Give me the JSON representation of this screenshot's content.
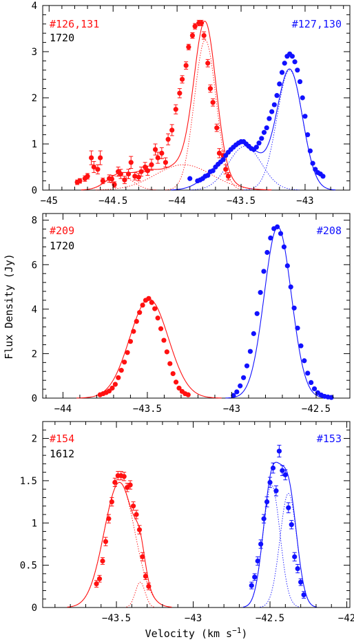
{
  "ylabel": "Flux Density (Jy)",
  "xlabel": "Velocity (km s",
  "xlabel_sup": "−1",
  "xlabel_close": ")",
  "colors": {
    "red": "#ff1111",
    "blue": "#1111ff",
    "axis": "#000000"
  },
  "chart_data": [
    {
      "type": "scatter",
      "xlim": [
        -45.05,
        -42.65
      ],
      "ylim": [
        0,
        4
      ],
      "xticks_major": [
        -45,
        -44.5,
        -44,
        -43.5,
        -43
      ],
      "xticklabels": [
        "−45",
        "−44.5",
        "−44",
        "−43.5",
        "−43"
      ],
      "yticks_major": [
        0,
        1,
        2,
        3,
        4
      ],
      "yticklabels": [
        "0",
        "1",
        "2",
        "3",
        "4"
      ],
      "labels": {
        "left_top": "#126,131",
        "left_bottom": "1720",
        "right_top": "#127,130"
      },
      "series": [
        {
          "color": "red",
          "errors": true,
          "x": [
            -44.78,
            -44.76,
            -44.72,
            -44.7,
            -44.67,
            -44.65,
            -44.62,
            -44.6,
            -44.58,
            -44.53,
            -44.51,
            -44.49,
            -44.46,
            -44.44,
            -44.41,
            -44.38,
            -44.36,
            -44.33,
            -44.3,
            -44.28,
            -44.25,
            -44.23,
            -44.2,
            -44.17,
            -44.15,
            -44.12,
            -44.09,
            -44.07,
            -44.04,
            -44.01,
            -43.98,
            -43.96,
            -43.93,
            -43.91,
            -43.88,
            -43.86,
            -43.83,
            -43.81,
            -43.79,
            -43.76,
            -43.74,
            -43.72,
            -43.69,
            -43.67,
            -43.64,
            -43.62,
            -43.6
          ],
          "y": [
            0.17,
            0.2,
            0.25,
            0.3,
            0.7,
            0.5,
            0.45,
            0.7,
            0.2,
            0.25,
            0.24,
            0.12,
            0.4,
            0.35,
            0.22,
            0.35,
            0.6,
            0.3,
            0.28,
            0.4,
            0.5,
            0.42,
            0.55,
            0.88,
            0.7,
            0.8,
            0.6,
            1.1,
            1.3,
            1.75,
            2.1,
            2.4,
            2.7,
            3.1,
            3.35,
            3.55,
            3.62,
            3.62,
            3.35,
            2.75,
            2.2,
            1.9,
            1.35,
            0.8,
            0.75,
            0.45,
            0.3
          ],
          "err": [
            0.05,
            0.05,
            0.06,
            0.06,
            0.15,
            0.12,
            0.1,
            0.15,
            0.06,
            0.08,
            0.08,
            0.06,
            0.1,
            0.1,
            0.08,
            0.1,
            0.13,
            0.08,
            0.08,
            0.1,
            0.1,
            0.1,
            0.12,
            0.12,
            0.12,
            0.12,
            0.1,
            0.12,
            0.12,
            0.1,
            0.1,
            0.08,
            0.08,
            0.06,
            0.06,
            0.06,
            0.06,
            0.06,
            0.08,
            0.08,
            0.08,
            0.08,
            0.08,
            0.1,
            0.1,
            0.1,
            0.08
          ]
        },
        {
          "color": "blue",
          "errors": true,
          "x": [
            -43.9,
            -43.84,
            -43.82,
            -43.8,
            -43.78,
            -43.76,
            -43.74,
            -43.72,
            -43.7,
            -43.68,
            -43.66,
            -43.64,
            -43.62,
            -43.6,
            -43.58,
            -43.56,
            -43.54,
            -43.52,
            -43.5,
            -43.48,
            -43.46,
            -43.44,
            -43.42,
            -43.4,
            -43.38,
            -43.36,
            -43.34,
            -43.32,
            -43.3,
            -43.28,
            -43.26,
            -43.24,
            -43.22,
            -43.2,
            -43.18,
            -43.16,
            -43.14,
            -43.12,
            -43.1,
            -43.08,
            -43.06,
            -43.04,
            -43.02,
            -43.0,
            -42.98,
            -42.96,
            -42.94,
            -42.92,
            -42.9,
            -42.88,
            -42.86
          ],
          "y": [
            0.25,
            0.2,
            0.22,
            0.25,
            0.3,
            0.32,
            0.4,
            0.42,
            0.5,
            0.56,
            0.61,
            0.66,
            0.75,
            0.82,
            0.88,
            0.93,
            0.98,
            1.02,
            1.05,
            1.05,
            1.0,
            0.95,
            0.9,
            0.88,
            0.93,
            1.02,
            1.12,
            1.25,
            1.35,
            1.55,
            1.7,
            1.85,
            2.05,
            2.3,
            2.55,
            2.75,
            2.9,
            2.95,
            2.9,
            2.78,
            2.6,
            2.35,
            2.0,
            1.6,
            1.2,
            0.85,
            0.58,
            0.45,
            0.38,
            0.35,
            0.3
          ]
        }
      ],
      "fits": [
        {
          "color": "red",
          "kind": "total",
          "components": [
            [
              3.25,
              -43.78,
              0.085
            ],
            [
              0.55,
              -43.95,
              0.22
            ],
            [
              0.32,
              -44.45,
              0.1
            ],
            [
              0.18,
              -44.25,
              0.08
            ]
          ]
        },
        {
          "color": "red",
          "kind": "dotted",
          "components": [
            [
              3.25,
              -43.78,
              0.085
            ]
          ]
        },
        {
          "color": "red",
          "kind": "dotted",
          "components": [
            [
              0.55,
              -43.95,
              0.22
            ]
          ]
        },
        {
          "color": "red",
          "kind": "dotted",
          "components": [
            [
              0.32,
              -44.45,
              0.1
            ]
          ]
        },
        {
          "color": "blue",
          "kind": "total",
          "components": [
            [
              2.6,
              -43.12,
              0.1
            ],
            [
              0.95,
              -43.47,
              0.13
            ],
            [
              0.3,
              -43.7,
              0.12
            ]
          ]
        },
        {
          "color": "blue",
          "kind": "dotted",
          "components": [
            [
              2.6,
              -43.12,
              0.1
            ]
          ]
        },
        {
          "color": "blue",
          "kind": "dotted",
          "components": [
            [
              0.95,
              -43.47,
              0.13
            ]
          ]
        }
      ]
    },
    {
      "type": "scatter",
      "xlim": [
        -44.12,
        -42.3
      ],
      "ylim": [
        0,
        8.3
      ],
      "xticks_major": [
        -44,
        -43.5,
        -43,
        -42.5
      ],
      "xticklabels": [
        "−44",
        "−43.5",
        "−43",
        "−42.5"
      ],
      "yticks_major": [
        0,
        2,
        4,
        6,
        8
      ],
      "yticklabels": [
        "0",
        "2",
        "4",
        "6",
        "8"
      ],
      "labels": {
        "left_top": "#209",
        "left_bottom": "1720",
        "right_top": "#208"
      },
      "series": [
        {
          "color": "red",
          "errors": false,
          "x": [
            -43.78,
            -43.762,
            -43.744,
            -43.726,
            -43.708,
            -43.69,
            -43.672,
            -43.654,
            -43.636,
            -43.618,
            -43.6,
            -43.582,
            -43.564,
            -43.546,
            -43.528,
            -43.51,
            -43.492,
            -43.474,
            -43.456,
            -43.438,
            -43.42,
            -43.402,
            -43.384,
            -43.366,
            -43.348,
            -43.33,
            -43.312,
            -43.294,
            -43.276,
            -43.258
          ],
          "y": [
            0.15,
            0.2,
            0.25,
            0.32,
            0.45,
            0.62,
            0.92,
            1.25,
            1.62,
            2.05,
            2.55,
            3.0,
            3.45,
            3.85,
            4.18,
            4.4,
            4.48,
            4.3,
            4.02,
            3.6,
            3.12,
            2.6,
            2.08,
            1.55,
            1.1,
            0.72,
            0.45,
            0.3,
            0.2,
            0.15
          ]
        },
        {
          "color": "blue",
          "errors": false,
          "x": [
            -42.99,
            -42.97,
            -42.95,
            -42.93,
            -42.91,
            -42.89,
            -42.87,
            -42.85,
            -42.83,
            -42.81,
            -42.79,
            -42.77,
            -42.75,
            -42.73,
            -42.71,
            -42.69,
            -42.67,
            -42.65,
            -42.63,
            -42.61,
            -42.59,
            -42.57,
            -42.55,
            -42.53,
            -42.51,
            -42.49,
            -42.47,
            -42.45,
            -42.43,
            -42.41
          ],
          "y": [
            0.12,
            0.28,
            0.55,
            0.92,
            1.45,
            2.1,
            2.9,
            3.8,
            4.75,
            5.7,
            6.55,
            7.2,
            7.62,
            7.7,
            7.4,
            6.8,
            5.95,
            5.0,
            4.05,
            3.15,
            2.35,
            1.68,
            1.12,
            0.7,
            0.42,
            0.24,
            0.14,
            0.08,
            0.05,
            0.03
          ]
        }
      ],
      "fits": [
        {
          "color": "red",
          "kind": "total",
          "components": [
            [
              4.45,
              -43.49,
              0.115
            ]
          ]
        },
        {
          "color": "blue",
          "kind": "total",
          "components": [
            [
              7.7,
              -42.727,
              0.08
            ]
          ]
        }
      ]
    },
    {
      "type": "scatter",
      "xlim": [
        -43.98,
        -41.98
      ],
      "ylim": [
        0,
        2.2
      ],
      "xticks_major": [
        -43.5,
        -43,
        -42.5,
        -42
      ],
      "xticklabels": [
        "−43.5",
        "−43",
        "−42.5",
        "−42"
      ],
      "yticks_major": [
        0,
        0.5,
        1,
        1.5,
        2
      ],
      "yticklabels": [
        "0",
        "0.5",
        "1",
        "1.5",
        "2"
      ],
      "labels": {
        "left_top": "#154",
        "left_bottom": "1612",
        "right_top": "#153"
      },
      "series": [
        {
          "color": "red",
          "errors": true,
          "x": [
            -43.63,
            -43.61,
            -43.59,
            -43.57,
            -43.55,
            -43.53,
            -43.51,
            -43.49,
            -43.47,
            -43.45,
            -43.43,
            -43.41,
            -43.39,
            -43.37,
            -43.35,
            -43.33,
            -43.31,
            -43.29
          ],
          "y": [
            0.28,
            0.34,
            0.55,
            0.78,
            1.05,
            1.25,
            1.48,
            1.56,
            1.56,
            1.55,
            1.42,
            1.45,
            1.2,
            1.1,
            0.92,
            0.6,
            0.37,
            0.25
          ],
          "err": [
            0.04,
            0.04,
            0.04,
            0.05,
            0.05,
            0.05,
            0.05,
            0.05,
            0.05,
            0.05,
            0.05,
            0.05,
            0.05,
            0.05,
            0.05,
            0.05,
            0.04,
            0.04
          ]
        },
        {
          "color": "blue",
          "errors": true,
          "x": [
            -42.62,
            -42.6,
            -42.58,
            -42.56,
            -42.54,
            -42.52,
            -42.5,
            -42.48,
            -42.46,
            -42.44,
            -42.42,
            -42.4,
            -42.38,
            -42.36,
            -42.34,
            -42.32,
            -42.3,
            -42.28
          ],
          "y": [
            0.26,
            0.36,
            0.55,
            0.75,
            1.05,
            1.25,
            1.48,
            1.65,
            1.38,
            1.85,
            1.62,
            1.57,
            1.18,
            0.98,
            0.6,
            0.46,
            0.3,
            0.15
          ],
          "err": [
            0.04,
            0.04,
            0.05,
            0.05,
            0.05,
            0.06,
            0.06,
            0.06,
            0.06,
            0.07,
            0.06,
            0.06,
            0.06,
            0.05,
            0.05,
            0.05,
            0.04,
            0.04
          ]
        }
      ],
      "fits": [
        {
          "color": "red",
          "kind": "total",
          "components": [
            [
              1.48,
              -43.48,
              0.1
            ],
            [
              0.3,
              -43.345,
              0.032
            ]
          ]
        },
        {
          "color": "red",
          "kind": "dotted",
          "components": [
            [
              1.48,
              -43.48,
              0.1
            ]
          ]
        },
        {
          "color": "red",
          "kind": "dotted",
          "components": [
            [
              0.3,
              -43.345,
              0.032
            ]
          ]
        },
        {
          "color": "blue",
          "kind": "total",
          "components": [
            [
              1.45,
              -42.49,
              0.055
            ],
            [
              1.35,
              -42.38,
              0.055
            ]
          ]
        },
        {
          "color": "blue",
          "kind": "dotted",
          "components": [
            [
              1.45,
              -42.49,
              0.055
            ]
          ]
        },
        {
          "color": "blue",
          "kind": "dotted",
          "components": [
            [
              1.35,
              -42.38,
              0.055
            ]
          ]
        }
      ]
    }
  ]
}
